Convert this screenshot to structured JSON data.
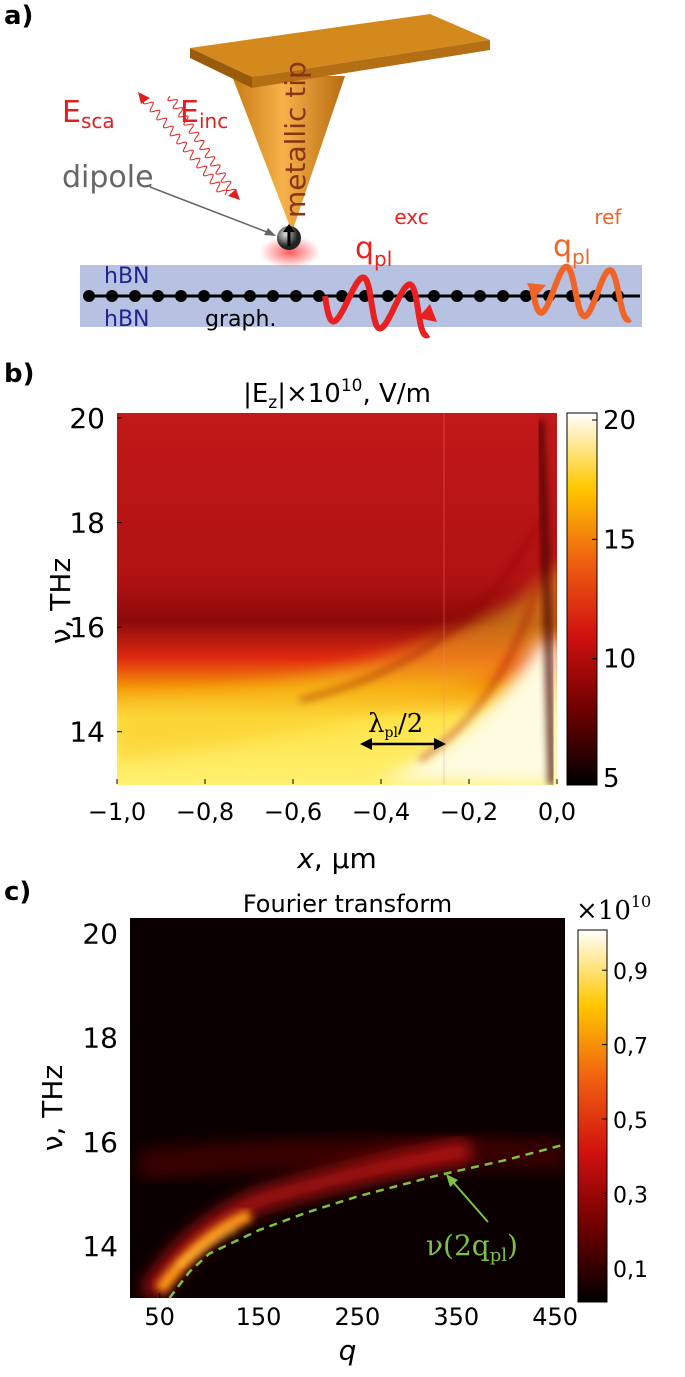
{
  "panel_a": {
    "label": "a)",
    "e_sca": {
      "main": "E",
      "sub": "sca"
    },
    "e_inc": {
      "main": "E",
      "sub": "inc"
    },
    "dipole": "dipole",
    "tip": "metallic tip",
    "hbn_top": "hBN",
    "hbn_bottom": "hBN",
    "graphene": "graph.",
    "q_exc": {
      "main": "q",
      "sub": "pl",
      "sup": "exc"
    },
    "q_ref": {
      "main": "q",
      "sub": "pl",
      "sup": "ref"
    }
  },
  "chart_data": [
    {
      "type": "heatmap",
      "panel_label": "b)",
      "title_parts": {
        "pre": "|E",
        "sub": "z",
        "mid": "|×10",
        "sup": "10",
        "post": ", V/m"
      },
      "xlabel": {
        "var": "x",
        "unit": ", μm"
      },
      "ylabel": "ν, THz",
      "xlim": [
        -1,
        0
      ],
      "ylim": [
        13,
        20
      ],
      "xticks": [
        {
          "value": -1,
          "label": "−1,0"
        },
        {
          "value": -0.8,
          "label": "−0,8"
        },
        {
          "value": -0.6,
          "label": "−0,6"
        },
        {
          "value": -0.4,
          "label": "−0,4"
        },
        {
          "value": -0.2,
          "label": "−0,2"
        },
        {
          "value": 0,
          "label": "0,0"
        }
      ],
      "yticks": [
        14,
        16,
        18,
        20
      ],
      "clim": [
        5,
        20
      ],
      "cticks": [
        5,
        10,
        15,
        20
      ],
      "colormap": [
        "#000000",
        "#6e0000",
        "#d01010",
        "#f06010",
        "#ffc800",
        "#ffffff"
      ],
      "annotation": {
        "pre": "λ",
        "sub": "pl",
        "post": "/2"
      }
    },
    {
      "type": "heatmap",
      "panel_label": "c)",
      "title": "Fourier transform",
      "xlabel": {
        "var": "q",
        "unit": ""
      },
      "ylabel": "ν, THz",
      "xlim": [
        20,
        460
      ],
      "ylim": [
        13,
        20.3
      ],
      "xticks": [
        50,
        150,
        250,
        350,
        450
      ],
      "yticks": [
        14,
        16,
        18,
        20
      ],
      "clim": [
        0,
        1
      ],
      "cticks": [
        {
          "value": 0.1,
          "label": "0,1"
        },
        {
          "value": 0.3,
          "label": "0,3"
        },
        {
          "value": 0.5,
          "label": "0,5"
        },
        {
          "value": 0.7,
          "label": "0,7"
        },
        {
          "value": 0.9,
          "label": "0,9"
        }
      ],
      "cmultiplier": {
        "base": "×10",
        "exp": "10"
      },
      "colormap": [
        "#000000",
        "#6e0000",
        "#d01010",
        "#f06010",
        "#ffc800",
        "#ffffff"
      ],
      "curve": {
        "color": "#7dc242",
        "x": [
          60,
          80,
          100,
          150,
          200,
          250,
          300,
          330,
          400,
          460
        ],
        "values": [
          13,
          13.5,
          13.85,
          14.3,
          14.65,
          14.95,
          15.2,
          15.35,
          15.65,
          15.95
        ]
      },
      "annotation": {
        "pre": "ν(2q",
        "sub": "pl",
        "post": ")"
      }
    }
  ]
}
